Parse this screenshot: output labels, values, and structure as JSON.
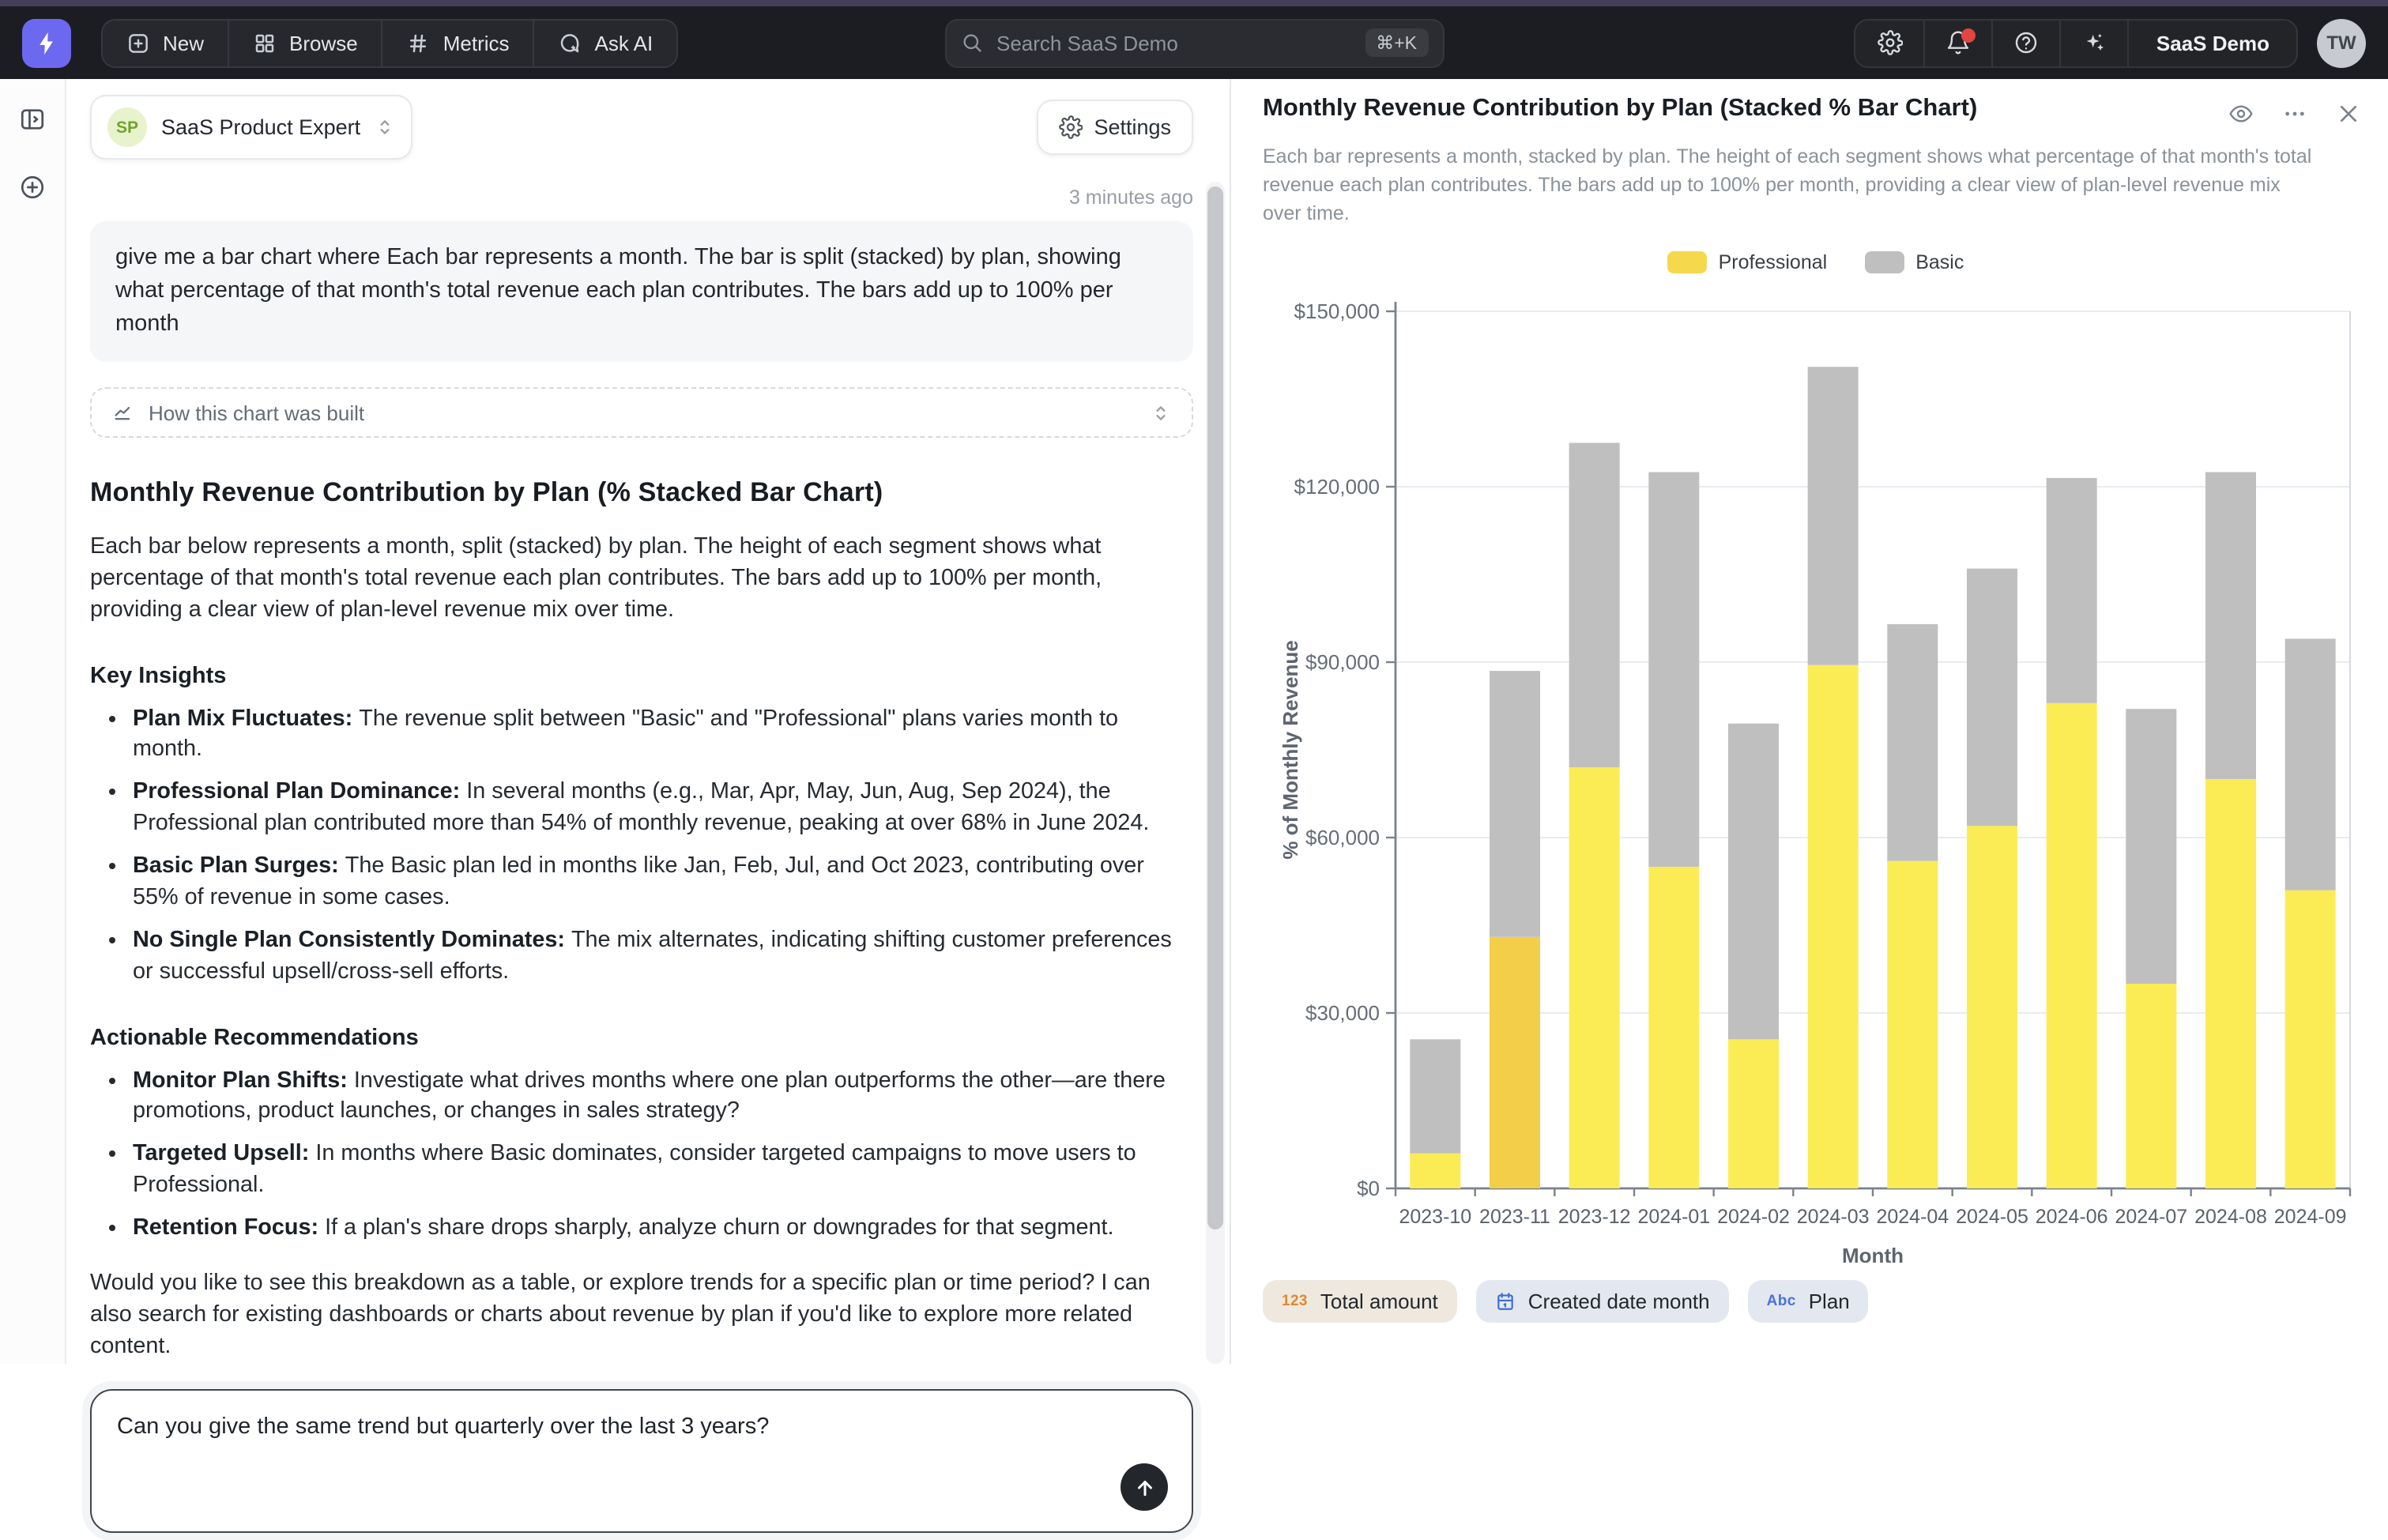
{
  "navbar": {
    "buttons": [
      {
        "label": "New",
        "icon": "plus-square-icon"
      },
      {
        "label": "Browse",
        "icon": "grid-icon"
      },
      {
        "label": "Metrics",
        "icon": "hash-icon"
      },
      {
        "label": "Ask AI",
        "icon": "chat-sparkle-icon"
      }
    ],
    "search": {
      "placeholder": "Search SaaS Demo",
      "shortcut": "⌘+K"
    },
    "workspace": "SaaS Demo",
    "avatar_initials": "TW"
  },
  "chat": {
    "agent": {
      "initials": "SP",
      "name": "SaaS Product Expert"
    },
    "settings_label": "Settings",
    "timestamp": "3 minutes ago",
    "user_message": "give me a bar chart where Each bar represents a month. The bar is split (stacked) by plan, showing what percentage of that month's total revenue each plan contributes. The bars add up to 100% per month",
    "expander_label": "How this chart was built",
    "response": {
      "title": "Monthly Revenue Contribution by Plan (% Stacked Bar Chart)",
      "intro": "Each bar below represents a month, split (stacked) by plan. The height of each segment shows what percentage of that month's total revenue each plan contributes. The bars add up to 100% per month, providing a clear view of plan-level revenue mix over time.",
      "insights_heading": "Key Insights",
      "insights": [
        {
          "lead": "Plan Mix Fluctuates:",
          "text": "The revenue split between \"Basic\" and \"Professional\" plans varies month to month."
        },
        {
          "lead": "Professional Plan Dominance:",
          "text": "In several months (e.g., Mar, Apr, May, Jun, Aug, Sep 2024), the Professional plan contributed more than 54% of monthly revenue, peaking at over 68% in June 2024."
        },
        {
          "lead": "Basic Plan Surges:",
          "text": "The Basic plan led in months like Jan, Feb, Jul, and Oct 2023, contributing over 55% of revenue in some cases."
        },
        {
          "lead": "No Single Plan Consistently Dominates:",
          "text": "The mix alternates, indicating shifting customer preferences or successful upsell/cross-sell efforts."
        }
      ],
      "recs_heading": "Actionable Recommendations",
      "recs": [
        {
          "lead": "Monitor Plan Shifts:",
          "text": "Investigate what drives months where one plan outperforms the other—are there promotions, product launches, or changes in sales strategy?"
        },
        {
          "lead": "Targeted Upsell:",
          "text": "In months where Basic dominates, consider targeted campaigns to move users to Professional."
        },
        {
          "lead": "Retention Focus:",
          "text": "If a plan's share drops sharply, analyze churn or downgrades for that segment."
        }
      ],
      "closing": "Would you like to see this breakdown as a table, or explore trends for a specific plan or time period? I can also search for existing dashboards or charts about revenue by plan if you'd like to explore more related content."
    },
    "input_value": "Can you give the same trend but quarterly over the last 3 years?"
  },
  "panel": {
    "title": "Monthly Revenue Contribution by Plan (Stacked % Bar Chart)",
    "description": "Each bar represents a month, stacked by plan. The height of each segment shows what percentage of that month's total revenue each plan contributes. The bars add up to 100% per month, providing a clear view of plan-level revenue mix over time.",
    "fields": [
      {
        "label": "Total amount",
        "icon": "numeric-123-icon"
      },
      {
        "label": "Created date month",
        "icon": "calendar-icon"
      },
      {
        "label": "Plan",
        "icon": "abc-icon"
      }
    ]
  },
  "chart_data": {
    "type": "bar",
    "stacked": true,
    "categories": [
      "2023-10",
      "2023-11",
      "2023-12",
      "2024-01",
      "2024-02",
      "2024-03",
      "2024-04",
      "2024-05",
      "2024-06",
      "2024-07",
      "2024-08",
      "2024-09"
    ],
    "series": [
      {
        "name": "Professional",
        "color": "#F6D84C",
        "values": [
          6000,
          43000,
          72000,
          55000,
          25500,
          89500,
          56000,
          62000,
          83000,
          35000,
          70000,
          51000
        ]
      },
      {
        "name": "Basic",
        "color": "#BFBFBF",
        "values": [
          19500,
          45500,
          55500,
          67500,
          54000,
          51000,
          40500,
          44000,
          38500,
          47000,
          52500,
          43000
        ]
      }
    ],
    "professional_bar_colors": [
      "#FBEC55",
      "#F2CE49",
      "#FBEC55",
      "#FBEC55",
      "#FBEC55",
      "#FBEC55",
      "#FBEC55",
      "#FBEC55",
      "#FBEC55",
      "#FBEC55",
      "#FBEC55",
      "#FBEC55"
    ],
    "xlabel": "Month",
    "ylabel": "% of Monthly Revenue",
    "ylim": [
      0,
      150000
    ],
    "ytick_values": [
      0,
      30000,
      60000,
      90000,
      120000,
      150000
    ],
    "ytick_labels": [
      "$0",
      "$30,000",
      "$60,000",
      "$90,000",
      "$120,000",
      "$150,000"
    ],
    "legend_position": "top",
    "grid": true
  }
}
